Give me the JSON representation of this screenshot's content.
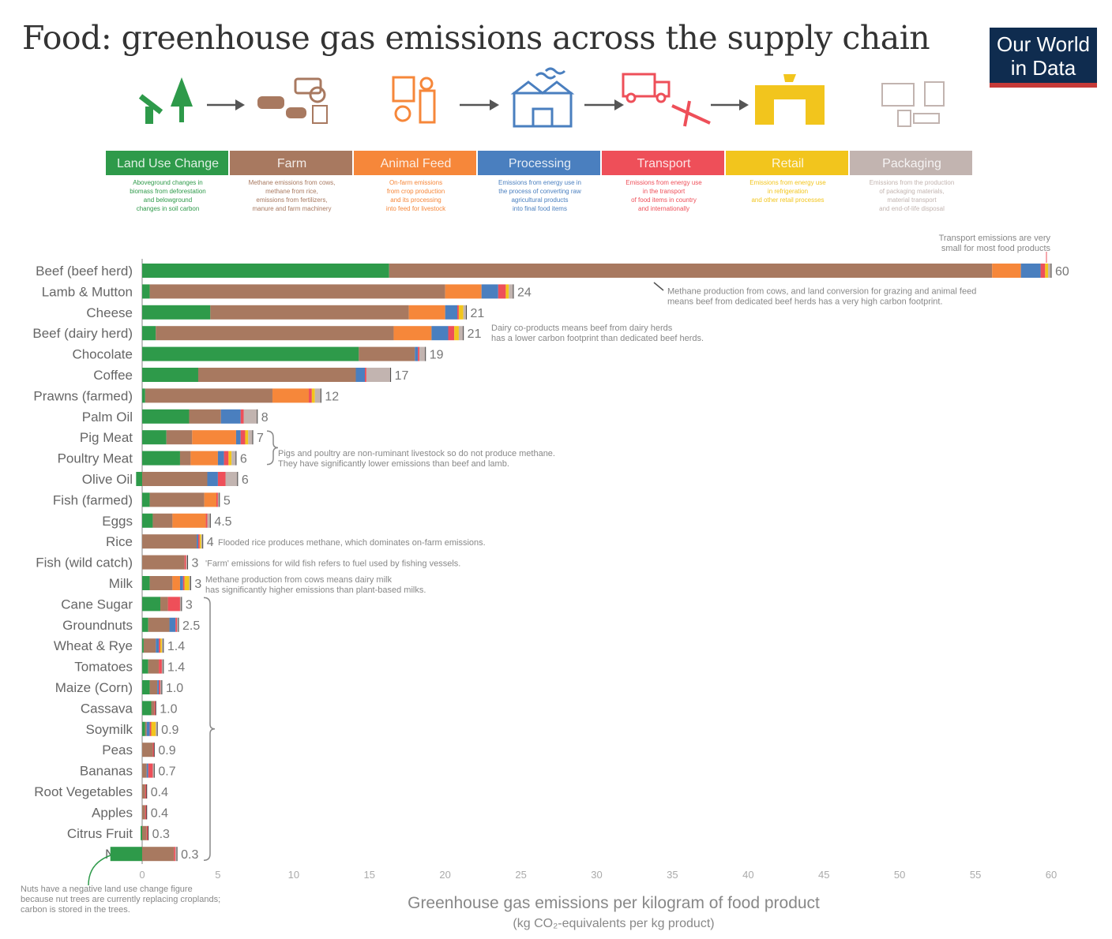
{
  "header": {
    "title": "Food: greenhouse gas emissions across the supply chain",
    "logo_line1": "Our World",
    "logo_line2": "in Data"
  },
  "stages": [
    {
      "label": "Land Use Change",
      "color": "#2e9a4a",
      "desc": [
        "Aboveground changes in",
        "biomass from deforestation",
        "and belowground",
        "changes in soil carbon"
      ]
    },
    {
      "label": "Farm",
      "color": "#a87960",
      "desc": [
        "Methane emissions from cows,",
        "methane from rice,",
        "emissions from fertilizers,",
        "manure and farm machinery"
      ]
    },
    {
      "label": "Animal Feed",
      "color": "#f6873a",
      "desc": [
        "On-farm emissions",
        "from crop production",
        "and its processing",
        "into feed for livestock"
      ]
    },
    {
      "label": "Processing",
      "color": "#4a7fbf",
      "desc": [
        "Emissions from energy use in",
        "the process of converting raw",
        "agricultural products",
        "into final food items"
      ]
    },
    {
      "label": "Transport",
      "color": "#ee4f59",
      "desc": [
        "Emissions from energy use",
        "in the transport",
        "of food items in country",
        "and internationally"
      ]
    },
    {
      "label": "Retail",
      "color": "#f2c51d",
      "desc": [
        "Emissions from energy use",
        "in refrigeration",
        "and other retail processes"
      ]
    },
    {
      "label": "Packaging",
      "color": "#c2b4b0",
      "desc": [
        "Emissions from the production",
        "of packaging materials,",
        "material transport",
        "and end-of-life disposal"
      ]
    }
  ],
  "icons": [
    "deforestation-icon",
    "farm-icon",
    "animal-feed-icon",
    "factory-icon",
    "transport-icon",
    "retail-store-icon",
    "packaging-icon"
  ],
  "chart_data": {
    "type": "bar",
    "stacked": true,
    "orientation": "horizontal",
    "xlabel": "Greenhouse gas emissions per kilogram of food product",
    "xlabel_sub": "(kg CO₂-equivalents per kg product)",
    "xlim": [
      0,
      60
    ],
    "xticks": [
      "0",
      "5",
      "10",
      "15",
      "20",
      "25",
      "30",
      "35",
      "40",
      "45",
      "50",
      "55",
      "60"
    ],
    "series_names": [
      "Land Use Change",
      "Farm",
      "Animal Feed",
      "Processing",
      "Transport",
      "Retail",
      "Packaging"
    ],
    "rows": [
      {
        "name": "Beef (beef herd)",
        "label": "60",
        "parts": [
          16.3,
          39.8,
          1.9,
          1.3,
          0.3,
          0.2,
          0.2
        ]
      },
      {
        "name": "Lamb & Mutton",
        "label": "24",
        "parts": [
          0.5,
          19.5,
          2.4,
          1.1,
          0.5,
          0.2,
          0.3
        ]
      },
      {
        "name": "Cheese",
        "label": "21",
        "parts": [
          4.5,
          13.1,
          2.4,
          0.8,
          0.1,
          0.3,
          0.2
        ]
      },
      {
        "name": "Beef (dairy herd)",
        "label": "21",
        "parts": [
          0.9,
          15.7,
          2.5,
          1.1,
          0.4,
          0.3,
          0.3
        ]
      },
      {
        "name": "Chocolate",
        "label": "19",
        "parts": [
          14.3,
          3.7,
          0.0,
          0.2,
          0.1,
          0.0,
          0.4
        ]
      },
      {
        "name": "Coffee",
        "label": "17",
        "parts": [
          3.7,
          10.4,
          0.0,
          0.6,
          0.1,
          0.0,
          1.6
        ]
      },
      {
        "name": "Prawns (farmed)",
        "label": "12",
        "parts": [
          0.2,
          8.4,
          2.4,
          0.0,
          0.2,
          0.2,
          0.4
        ]
      },
      {
        "name": "Palm Oil",
        "label": "8",
        "parts": [
          3.1,
          2.1,
          0.0,
          1.3,
          0.2,
          0.0,
          0.9
        ]
      },
      {
        "name": "Pig Meat",
        "label": "7",
        "parts": [
          1.6,
          1.7,
          2.9,
          0.3,
          0.3,
          0.2,
          0.3
        ]
      },
      {
        "name": "Poultry Meat",
        "label": "6",
        "parts": [
          2.5,
          0.7,
          1.8,
          0.4,
          0.3,
          0.2,
          0.3
        ]
      },
      {
        "name": "Olive Oil",
        "label": "6",
        "parts": [
          -0.4,
          4.3,
          0.0,
          0.7,
          0.5,
          0.0,
          0.8
        ]
      },
      {
        "name": "Fish (farmed)",
        "label": "5",
        "parts": [
          0.5,
          3.6,
          0.8,
          0.0,
          0.1,
          0.0,
          0.1
        ]
      },
      {
        "name": "Eggs",
        "label": "4.5",
        "parts": [
          0.7,
          1.3,
          2.2,
          0.0,
          0.1,
          0.0,
          0.2
        ]
      },
      {
        "name": "Rice",
        "label": "4",
        "parts": [
          0.0,
          3.6,
          0.0,
          0.1,
          0.1,
          0.1,
          0.1
        ]
      },
      {
        "name": "Fish (wild catch)",
        "label": "3",
        "parts": [
          0.0,
          2.8,
          0.0,
          0.0,
          0.1,
          0.0,
          0.1
        ]
      },
      {
        "name": "Milk",
        "label": "3",
        "parts": [
          0.5,
          1.5,
          0.5,
          0.2,
          0.1,
          0.3,
          0.1
        ]
      },
      {
        "name": "Cane Sugar",
        "label": "3",
        "parts": [
          1.2,
          0.5,
          0.0,
          0.0,
          0.8,
          0.0,
          0.1
        ]
      },
      {
        "name": "Groundnuts",
        "label": "2.5",
        "parts": [
          0.4,
          1.4,
          0.0,
          0.4,
          0.1,
          0.0,
          0.1
        ]
      },
      {
        "name": "Wheat & Rye",
        "label": "1.4",
        "parts": [
          0.1,
          0.8,
          0.0,
          0.2,
          0.1,
          0.1,
          0.1
        ]
      },
      {
        "name": "Tomatoes",
        "label": "1.4",
        "parts": [
          0.4,
          0.7,
          0.0,
          0.0,
          0.2,
          0.0,
          0.1
        ]
      },
      {
        "name": "Maize (Corn)",
        "label": "1.0",
        "parts": [
          0.5,
          0.5,
          0.0,
          0.1,
          0.1,
          0.0,
          0.1
        ]
      },
      {
        "name": "Cassava",
        "label": "1.0",
        "parts": [
          0.6,
          0.2,
          0.0,
          0.0,
          0.1,
          0.0,
          0.0
        ]
      },
      {
        "name": "Soymilk",
        "label": "0.9",
        "parts": [
          0.2,
          0.1,
          0.0,
          0.2,
          0.1,
          0.3,
          0.1
        ]
      },
      {
        "name": "Peas",
        "label": "0.9",
        "parts": [
          0.0,
          0.7,
          0.0,
          0.0,
          0.1,
          0.0,
          0.0
        ]
      },
      {
        "name": "Bananas",
        "label": "0.7",
        "parts": [
          0.0,
          0.3,
          0.0,
          0.1,
          0.3,
          0.0,
          0.1
        ]
      },
      {
        "name": "Root Vegetables",
        "label": "0.4",
        "parts": [
          0.0,
          0.2,
          0.0,
          0.0,
          0.1,
          0.0,
          0.0
        ]
      },
      {
        "name": "Apples",
        "label": "0.4",
        "parts": [
          0.0,
          0.2,
          0.0,
          0.0,
          0.1,
          0.0,
          0.0
        ]
      },
      {
        "name": "Citrus Fruit",
        "label": "0.3",
        "parts": [
          -0.1,
          0.3,
          0.0,
          0.0,
          0.1,
          0.0,
          0.0
        ]
      },
      {
        "name": "Nuts",
        "label": "0.3",
        "parts": [
          -2.1,
          2.1,
          0.0,
          0.0,
          0.1,
          0.0,
          0.1
        ]
      }
    ],
    "annotations": [
      {
        "row": 0,
        "lines": [
          "Transport emissions are very",
          "small for most food products"
        ],
        "color": "#ee4f59",
        "style": "above"
      },
      {
        "row": 1,
        "lines": [
          "Methane production from cows, and land conversion for grazing and animal feed",
          "means beef from dedicated beef herds has a very high carbon footprint."
        ],
        "color": "#888888",
        "style": "side"
      },
      {
        "row": 3,
        "lines": [
          "Dairy co-products means beef from dairy herds",
          "has a lower carbon footprint than dedicated beef herds."
        ],
        "color": "#888888",
        "style": "side"
      },
      {
        "row": 8,
        "lines": [
          "Pigs and poultry are non-ruminant livestock so do not produce methane.",
          "They have significantly lower emissions than beef and lamb."
        ],
        "color": "#888888",
        "style": "brace"
      },
      {
        "row": 13,
        "lines": [
          "Flooded rice produces methane, which dominates on-farm emissions."
        ],
        "color": "#888888",
        "style": "side"
      },
      {
        "row": 14,
        "lines": [
          "'Farm' emissions for wild fish refers to fuel used by fishing vessels."
        ],
        "color": "#a87960",
        "style": "side"
      },
      {
        "row": 15,
        "lines": [
          "Methane production from cows means dairy milk",
          "has significantly higher emissions than plant-based milks."
        ],
        "color": "#888888",
        "style": "side"
      },
      {
        "row": 28,
        "lines": [
          "Nuts have a negative land use change figure",
          "because nut trees are currently replacing croplands;",
          "carbon is stored in the trees."
        ],
        "color": "#2e9a4a",
        "style": "below"
      }
    ]
  }
}
